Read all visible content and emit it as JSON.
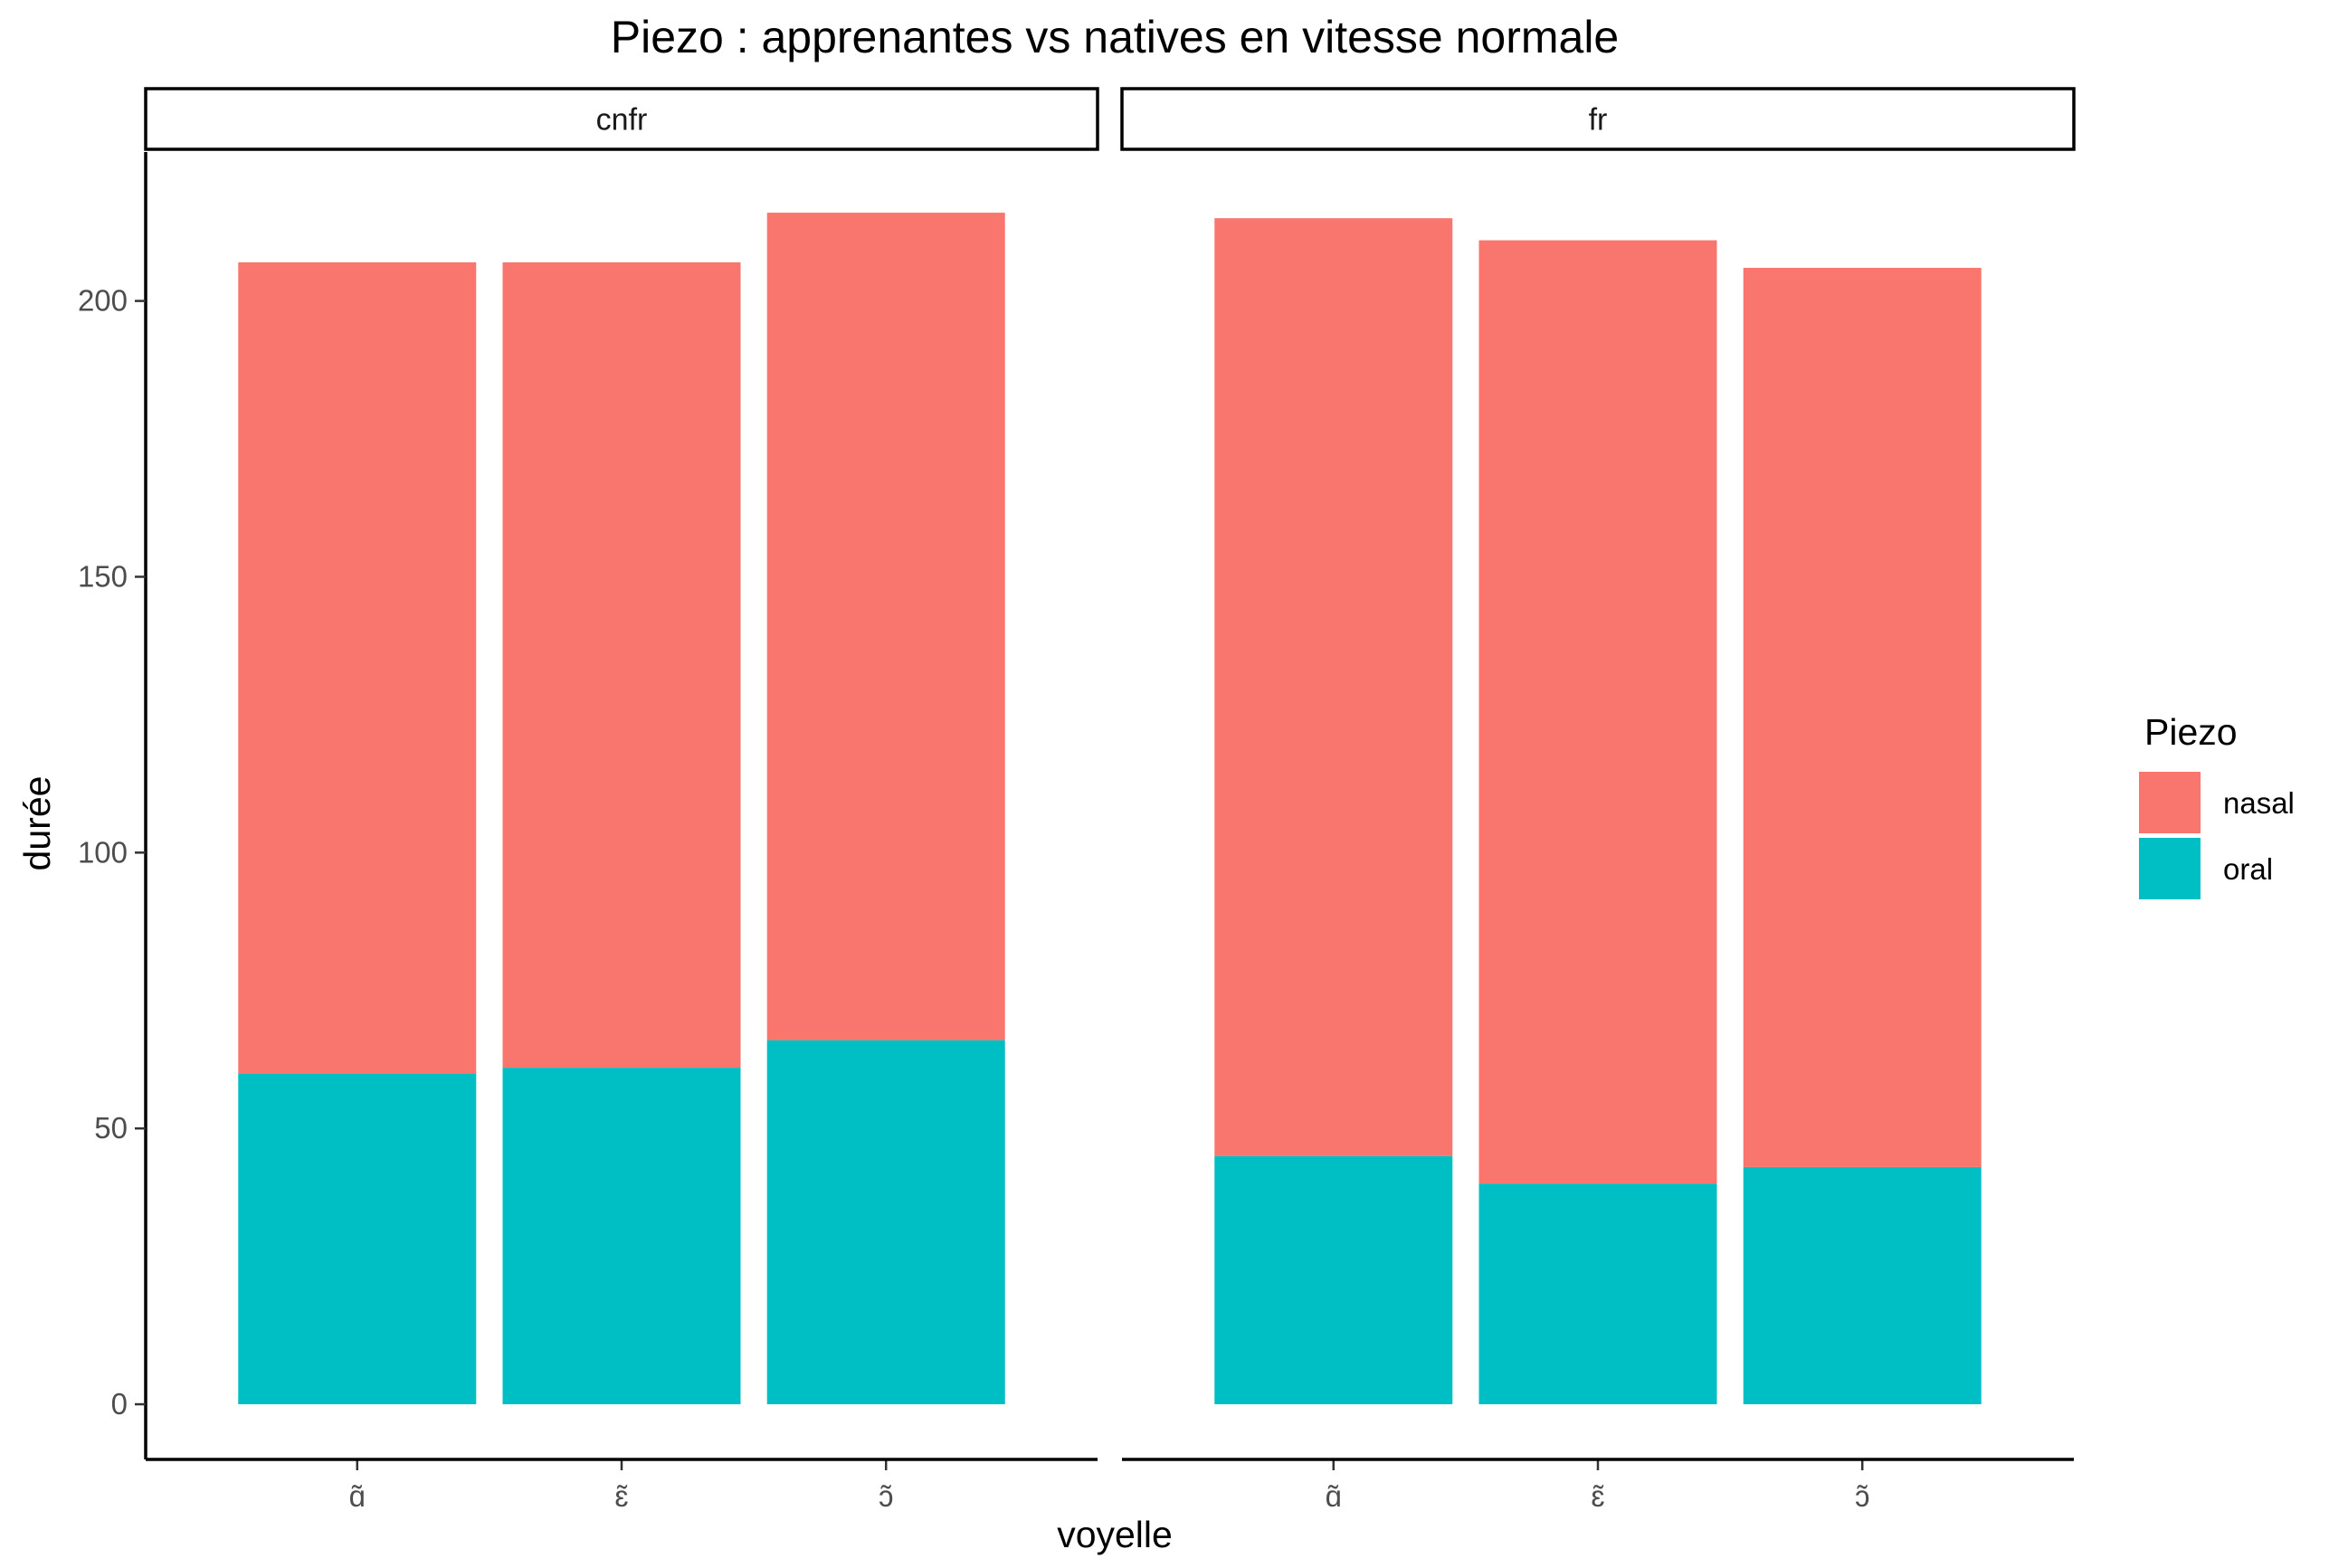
{
  "chart_data": {
    "type": "bar",
    "stacked": true,
    "title": "Piezo : apprenantes vs natives en vitesse normale",
    "xlabel": "voyelle",
    "ylabel": "durée",
    "ylim": [
      -10,
      227
    ],
    "yticks": [
      0,
      50,
      100,
      150,
      200
    ],
    "grid": false,
    "categories": [
      "ɑ̃",
      "ɛ̃",
      "ɔ̃"
    ],
    "legend": {
      "title": "Piezo",
      "placement": "right",
      "entries": [
        {
          "name": "nasal",
          "color": "#F8766D"
        },
        {
          "name": "oral",
          "color": "#00BFC4"
        }
      ]
    },
    "facets": [
      {
        "label": "cnfr",
        "series": [
          {
            "name": "oral",
            "values": [
              60,
              61,
              66
            ]
          },
          {
            "name": "nasal",
            "values": [
              147,
              146,
              150
            ]
          }
        ]
      },
      {
        "label": "fr",
        "series": [
          {
            "name": "oral",
            "values": [
              45,
              40,
              43
            ]
          },
          {
            "name": "nasal",
            "values": [
              170,
              171,
              163
            ]
          }
        ]
      }
    ]
  }
}
